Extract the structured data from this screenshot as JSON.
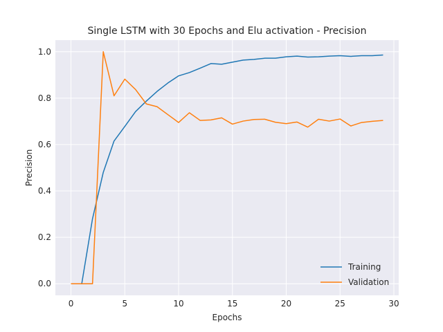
{
  "chart_data": {
    "type": "line",
    "title": "Single LSTM with 30 Epochs and Elu activation - Precision",
    "xlabel": "Epochs",
    "ylabel": "Precision",
    "xlim": [
      -1.45,
      30.45
    ],
    "ylim": [
      -0.05,
      1.05
    ],
    "xticks": [
      0,
      5,
      10,
      15,
      20,
      25,
      30
    ],
    "yticks": [
      0.0,
      0.2,
      0.4,
      0.6,
      0.8,
      1.0
    ],
    "xtick_labels": [
      "0",
      "5",
      "10",
      "15",
      "20",
      "25",
      "30"
    ],
    "ytick_labels": [
      "0.0",
      "0.2",
      "0.4",
      "0.6",
      "0.8",
      "1.0"
    ],
    "grid": true,
    "legend_position": "lower-right",
    "x": [
      0,
      1,
      2,
      3,
      4,
      5,
      6,
      7,
      8,
      9,
      10,
      11,
      12,
      13,
      14,
      15,
      16,
      17,
      18,
      19,
      20,
      21,
      22,
      23,
      24,
      25,
      26,
      27,
      28,
      29
    ],
    "series": [
      {
        "name": "Training",
        "color": "#1f77b4",
        "values": [
          0.0,
          0.0,
          0.28,
          0.48,
          0.615,
          0.678,
          0.742,
          0.787,
          0.829,
          0.865,
          0.896,
          0.91,
          0.929,
          0.949,
          0.946,
          0.955,
          0.964,
          0.967,
          0.972,
          0.972,
          0.978,
          0.981,
          0.977,
          0.978,
          0.981,
          0.983,
          0.98,
          0.983,
          0.983,
          0.986
        ]
      },
      {
        "name": "Validation",
        "color": "#ff7f0e",
        "values": [
          0.0,
          0.0,
          0.0,
          1.0,
          0.81,
          0.882,
          0.837,
          0.775,
          0.763,
          0.729,
          0.695,
          0.737,
          0.704,
          0.706,
          0.715,
          0.688,
          0.701,
          0.708,
          0.709,
          0.696,
          0.69,
          0.697,
          0.675,
          0.709,
          0.701,
          0.71,
          0.68,
          0.695,
          0.7,
          0.704
        ]
      }
    ]
  }
}
